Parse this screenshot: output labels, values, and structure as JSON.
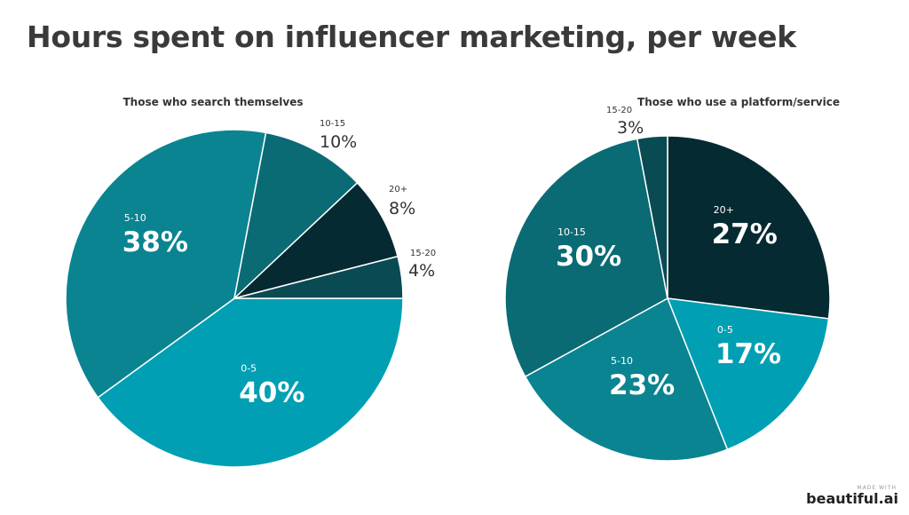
{
  "title": "Hours spent on influencer marketing, per week",
  "footer": {
    "made_with": "MADE WITH",
    "brand": "beautiful.ai"
  },
  "chart_data": [
    {
      "type": "pie",
      "title": "Those who search themselves",
      "slices": [
        {
          "label": "0-5",
          "value": 40,
          "display": "40%",
          "color": "#009fb3",
          "label_position": "inside"
        },
        {
          "label": "5-10",
          "value": 38,
          "display": "38%",
          "color": "#0a8491",
          "label_position": "inside"
        },
        {
          "label": "10-15",
          "value": 10,
          "display": "10%",
          "color": "#0a6b74",
          "label_position": "outside"
        },
        {
          "label": "20+",
          "value": 8,
          "display": "8%",
          "color": "#052a31",
          "label_position": "outside"
        },
        {
          "label": "15-20",
          "value": 4,
          "display": "4%",
          "color": "#0a4a53",
          "label_position": "outside"
        }
      ]
    },
    {
      "type": "pie",
      "title": "Those who use a  platform/service",
      "slices": [
        {
          "label": "20+",
          "value": 27,
          "display": "27%",
          "color": "#052a31",
          "label_position": "inside"
        },
        {
          "label": "0-5",
          "value": 17,
          "display": "17%",
          "color": "#009fb3",
          "label_position": "inside"
        },
        {
          "label": "5-10",
          "value": 23,
          "display": "23%",
          "color": "#0a8491",
          "label_position": "inside"
        },
        {
          "label": "10-15",
          "value": 30,
          "display": "30%",
          "color": "#0a6b74",
          "label_position": "inside"
        },
        {
          "label": "15-20",
          "value": 3,
          "display": "3%",
          "color": "#0a4a53",
          "label_position": "outside"
        }
      ]
    }
  ]
}
